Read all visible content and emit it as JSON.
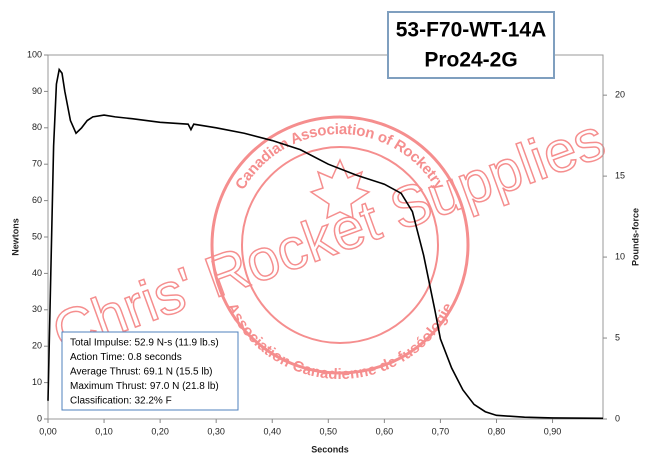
{
  "chart_data": {
    "type": "line",
    "title": [
      "53-F70-WT-14A",
      "Pro24-2G"
    ],
    "x_label": "Seconds",
    "y_label": "Newtons",
    "y2_label": "Pounds-force",
    "annotations": [
      "Total Impulse: 52.9 N-s (11.9 lb.s)",
      "Action Time: 0.8 seconds",
      "Average Thrust: 69.1 N (15.5 lb)",
      "Maximum Thrust: 97.0 N (21.8 lb)",
      "Classification: 32.2% F"
    ],
    "watermark": "Chris' Rocket Supplies",
    "logo_text": [
      "Canadian Association of Rocketry",
      "Association Canadienne de fuséologie"
    ],
    "color": "#000000",
    "x": [
      0,
      0.005,
      0.01,
      0.015,
      0.02,
      0.025,
      0.03,
      0.04,
      0.05,
      0.06,
      0.07,
      0.08,
      0.1,
      0.12,
      0.15,
      0.2,
      0.25,
      0.255,
      0.26,
      0.3,
      0.35,
      0.4,
      0.45,
      0.5,
      0.55,
      0.6,
      0.63,
      0.65,
      0.67,
      0.69,
      0.7,
      0.72,
      0.74,
      0.76,
      0.78,
      0.8,
      0.85,
      0.9,
      0.99
    ],
    "values": [
      5,
      40,
      75,
      92,
      96,
      95,
      90,
      82,
      78.5,
      80,
      82,
      83,
      83.5,
      83,
      82.5,
      81.5,
      81,
      79.5,
      81,
      80,
      78.5,
      76.5,
      74,
      70,
      67,
      64.5,
      62,
      57,
      45,
      30,
      22,
      14,
      8,
      4,
      2,
      1,
      0.5,
      0.3,
      0.2
    ],
    "xlim": [
      0,
      0.99
    ],
    "xticks": [
      {
        "value": 0,
        "label": "0,00"
      },
      {
        "value": 0.1,
        "label": "0,10"
      },
      {
        "value": 0.2,
        "label": "0,20"
      },
      {
        "value": 0.3,
        "label": "0,30"
      },
      {
        "value": 0.4,
        "label": "0,40"
      },
      {
        "value": 0.5,
        "label": "0,50"
      },
      {
        "value": 0.6,
        "label": "0,60"
      },
      {
        "value": 0.7,
        "label": "0,70"
      },
      {
        "value": 0.8,
        "label": "0,80"
      },
      {
        "value": 0.9,
        "label": "0,90"
      }
    ],
    "ylim": [
      0,
      100
    ],
    "yticks": [
      0,
      10,
      20,
      30,
      40,
      50,
      60,
      70,
      80,
      90,
      100
    ],
    "y2lim": [
      0,
      22.48
    ],
    "y2ticks": [
      0,
      5,
      10,
      15,
      20
    ],
    "grid": false
  }
}
